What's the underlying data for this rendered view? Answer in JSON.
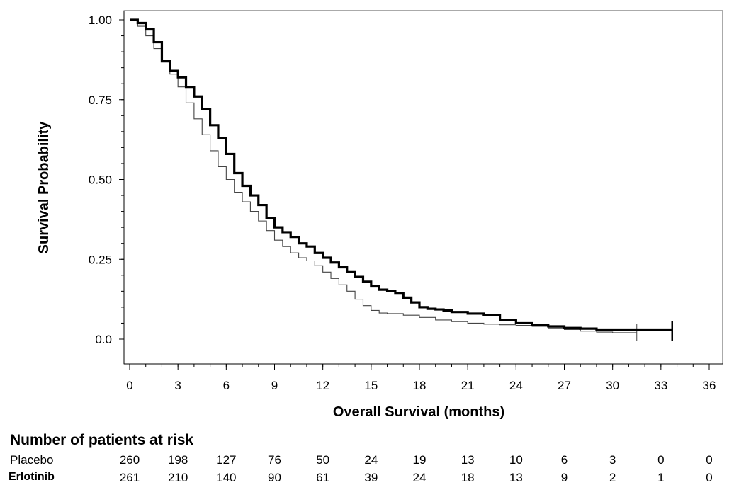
{
  "chart_data": {
    "type": "line",
    "title": "",
    "xlabel": "Overall Survival (months)",
    "ylabel": "Survival Probability",
    "xlim": [
      0,
      36
    ],
    "ylim": [
      0,
      1
    ],
    "x_ticks": [
      "0",
      "3",
      "6",
      "9",
      "12",
      "15",
      "18",
      "21",
      "24",
      "27",
      "30",
      "33",
      "36"
    ],
    "y_ticks": [
      "0.0",
      "0.25",
      "0.50",
      "0.75",
      "1.00"
    ],
    "grid": false,
    "series": [
      {
        "name": "Erlotinib",
        "style": "solid-thick",
        "color": "#000000",
        "x": [
          0,
          0.5,
          1,
          1.5,
          2,
          2.5,
          3,
          3.5,
          4,
          4.5,
          5,
          5.5,
          6,
          6.5,
          7,
          7.5,
          8,
          8.5,
          9,
          9.5,
          10,
          10.5,
          11,
          11.5,
          12,
          12.5,
          13,
          13.5,
          14,
          14.5,
          15,
          15.5,
          16,
          16.5,
          17,
          17.5,
          18,
          18.5,
          19,
          19.5,
          20,
          21,
          22,
          23,
          24,
          25,
          26,
          27,
          28,
          29,
          30,
          31,
          32,
          33,
          33.7
        ],
        "y": [
          1.0,
          0.99,
          0.97,
          0.93,
          0.87,
          0.84,
          0.82,
          0.79,
          0.76,
          0.72,
          0.67,
          0.63,
          0.58,
          0.52,
          0.48,
          0.45,
          0.42,
          0.38,
          0.35,
          0.335,
          0.32,
          0.3,
          0.29,
          0.27,
          0.255,
          0.24,
          0.225,
          0.21,
          0.195,
          0.18,
          0.165,
          0.155,
          0.15,
          0.145,
          0.13,
          0.115,
          0.1,
          0.095,
          0.093,
          0.09,
          0.085,
          0.08,
          0.075,
          0.06,
          0.05,
          0.045,
          0.04,
          0.035,
          0.033,
          0.03,
          0.03,
          0.03,
          0.03,
          0.03,
          0.03
        ]
      },
      {
        "name": "Placebo",
        "style": "thin",
        "color": "#444444",
        "x": [
          0,
          0.5,
          1,
          1.5,
          2,
          2.5,
          3,
          3.5,
          4,
          4.5,
          5,
          5.5,
          6,
          6.5,
          7,
          7.5,
          8,
          8.5,
          9,
          9.5,
          10,
          10.5,
          11,
          11.5,
          12,
          12.5,
          13,
          13.5,
          14,
          14.5,
          15,
          15.5,
          16,
          17,
          18,
          19,
          20,
          21,
          22,
          23,
          24,
          25,
          26,
          27,
          28,
          29,
          30,
          31,
          31.5
        ],
        "y": [
          1.0,
          0.98,
          0.95,
          0.91,
          0.87,
          0.83,
          0.79,
          0.74,
          0.69,
          0.64,
          0.59,
          0.54,
          0.5,
          0.46,
          0.43,
          0.4,
          0.37,
          0.34,
          0.31,
          0.29,
          0.27,
          0.255,
          0.245,
          0.23,
          0.21,
          0.19,
          0.17,
          0.15,
          0.125,
          0.105,
          0.09,
          0.082,
          0.08,
          0.075,
          0.068,
          0.06,
          0.055,
          0.05,
          0.047,
          0.045,
          0.043,
          0.04,
          0.035,
          0.03,
          0.025,
          0.022,
          0.02,
          0.02,
          0.02
        ]
      }
    ]
  },
  "risk_table": {
    "title": "Number of patients at risk",
    "rows": [
      {
        "label": "Placebo",
        "values": [
          "260",
          "198",
          "127",
          "76",
          "50",
          "24",
          "19",
          "13",
          "10",
          "6",
          "3",
          "0",
          "0"
        ]
      },
      {
        "label": "Erlotinib",
        "values": [
          "261",
          "210",
          "140",
          "90",
          "61",
          "39",
          "24",
          "18",
          "13",
          "9",
          "2",
          "1",
          "0"
        ]
      }
    ]
  }
}
